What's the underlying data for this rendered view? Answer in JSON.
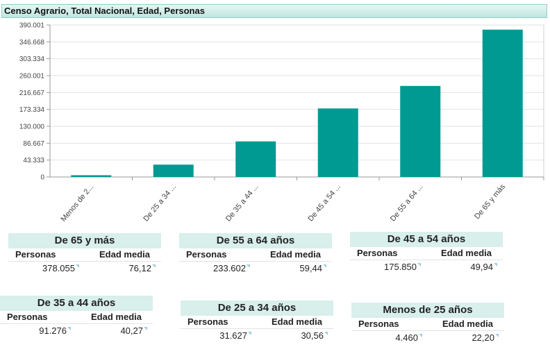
{
  "header": {
    "title": "Censo Agrario, Total Nacional, Edad, Personas"
  },
  "chart_data": {
    "type": "bar",
    "categories": [
      "Menos de 2...",
      "De 25 a 34 ...",
      "De 35 a 44 ...",
      "De 45 a 54 ...",
      "De 55 a 64 ...",
      "De 65 y más"
    ],
    "values": [
      4460,
      31627,
      91276,
      175850,
      233602,
      378055
    ],
    "yticks": [
      "0",
      "43.333",
      "86.667",
      "130.000",
      "173.334",
      "216.667",
      "260.001",
      "303.334",
      "346.668",
      "390.001"
    ],
    "ylim": [
      0,
      390001
    ],
    "bar_color": "#009a93",
    "grid": true
  },
  "cards": [
    {
      "title": "De 65 y más",
      "col_persons": "Personas",
      "col_age": "Edad media",
      "persons": "378.055",
      "age": "76,12"
    },
    {
      "title": "De 55 a 64 años",
      "col_persons": "Personas",
      "col_age": "Edad media",
      "persons": "233.602",
      "age": "59,44"
    },
    {
      "title": "De 45 a 54 años",
      "col_persons": "Personas",
      "col_age": "Edad media",
      "persons": "175.850",
      "age": "49,94"
    },
    {
      "title": "De 35 a 44 años",
      "col_persons": "Personas",
      "col_age": "Edad media",
      "persons": "91.276",
      "age": "40,27"
    },
    {
      "title": "De 25 a 34 años",
      "col_persons": "Personas",
      "col_age": "Edad media",
      "persons": "31.627",
      "age": "30,56"
    },
    {
      "title": "Menos de 25 años",
      "col_persons": "Personas",
      "col_age": "Edad media",
      "persons": "4.460",
      "age": "22,20"
    }
  ]
}
